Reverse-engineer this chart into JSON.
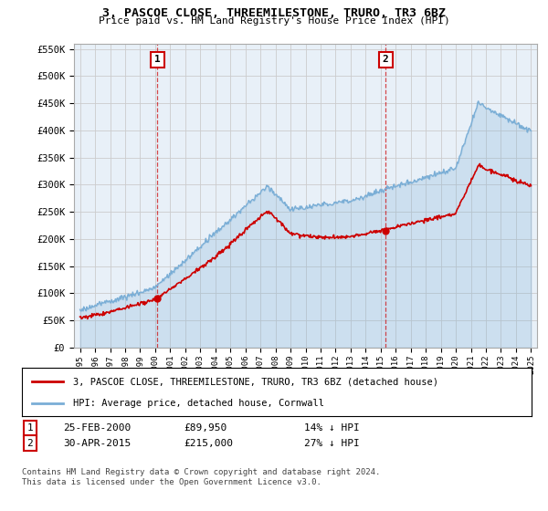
{
  "title": "3, PASCOE CLOSE, THREEMILESTONE, TRURO, TR3 6BZ",
  "subtitle": "Price paid vs. HM Land Registry's House Price Index (HPI)",
  "legend_line1": "3, PASCOE CLOSE, THREEMILESTONE, TRURO, TR3 6BZ (detached house)",
  "legend_line2": "HPI: Average price, detached house, Cornwall",
  "footer1": "Contains HM Land Registry data © Crown copyright and database right 2024.",
  "footer2": "This data is licensed under the Open Government Licence v3.0.",
  "table": [
    {
      "num": "1",
      "date": "25-FEB-2000",
      "price": "£89,950",
      "hpi": "14% ↓ HPI"
    },
    {
      "num": "2",
      "date": "30-APR-2015",
      "price": "£215,000",
      "hpi": "27% ↓ HPI"
    }
  ],
  "point1": {
    "year": 2000.15,
    "value": 89950
  },
  "point2": {
    "year": 2015.33,
    "value": 215000
  },
  "vline1_x": 2000.15,
  "vline2_x": 2015.33,
  "ylim": [
    0,
    560000
  ],
  "xlim_start": 1994.6,
  "xlim_end": 2025.4,
  "yticks": [
    0,
    50000,
    100000,
    150000,
    200000,
    250000,
    300000,
    350000,
    400000,
    450000,
    500000,
    550000
  ],
  "ytick_labels": [
    "£0",
    "£50K",
    "£100K",
    "£150K",
    "£200K",
    "£250K",
    "£300K",
    "£350K",
    "£400K",
    "£450K",
    "£500K",
    "£550K"
  ],
  "xticks": [
    1995,
    1996,
    1997,
    1998,
    1999,
    2000,
    2001,
    2002,
    2003,
    2004,
    2005,
    2006,
    2007,
    2008,
    2009,
    2010,
    2011,
    2012,
    2013,
    2014,
    2015,
    2016,
    2017,
    2018,
    2019,
    2020,
    2021,
    2022,
    2023,
    2024,
    2025
  ],
  "red_color": "#cc0000",
  "blue_color": "#7aaed6",
  "blue_fill": "#ddeeff",
  "grid_color": "#cccccc",
  "bg_color": "#ffffff",
  "chart_bg": "#e8f0f8"
}
